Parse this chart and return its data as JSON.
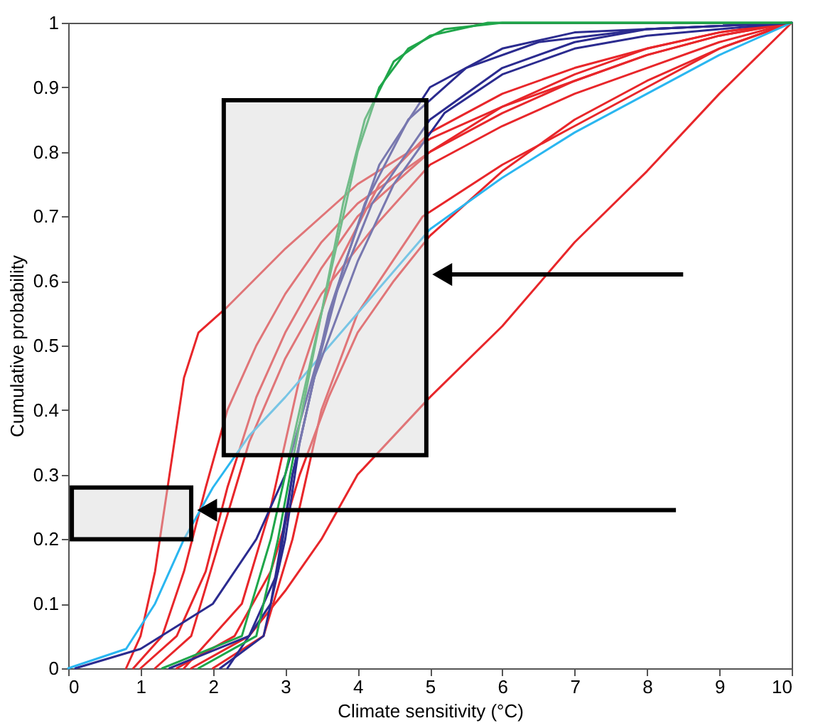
{
  "chart_data": {
    "type": "line",
    "xlabel": "Climate sensitivity (°C)",
    "ylabel": "Cumulative probability",
    "xlim": [
      0,
      10
    ],
    "ylim": [
      0,
      1
    ],
    "xticks": [
      0,
      1,
      2,
      3,
      4,
      5,
      6,
      7,
      8,
      9,
      10
    ],
    "yticks": [
      0,
      0.1,
      0.2,
      0.3,
      0.4,
      0.5,
      0.6,
      0.7,
      0.8,
      0.9,
      1
    ],
    "grid": false,
    "legend": false,
    "marker": "none",
    "line_style": "solid",
    "series": [
      {
        "color": "#e8262a",
        "x": [
          0.8,
          1.0,
          1.2,
          1.4,
          1.6,
          1.8,
          2.2,
          3,
          4,
          5,
          6,
          7,
          8,
          9,
          10
        ],
        "values": [
          0,
          0.05,
          0.15,
          0.3,
          0.45,
          0.52,
          0.56,
          0.65,
          0.75,
          0.82,
          0.87,
          0.91,
          0.95,
          0.98,
          1
        ]
      },
      {
        "color": "#e8262a",
        "x": [
          0.9,
          1.3,
          1.6,
          1.9,
          2.2,
          2.6,
          3,
          3.5,
          4,
          5,
          6,
          7,
          8,
          9,
          10
        ],
        "values": [
          0,
          0.05,
          0.15,
          0.28,
          0.4,
          0.5,
          0.58,
          0.66,
          0.72,
          0.8,
          0.86,
          0.91,
          0.95,
          0.98,
          1
        ]
      },
      {
        "color": "#e8262a",
        "x": [
          1,
          1.5,
          1.9,
          2.2,
          2.6,
          3,
          3.5,
          4,
          5,
          6,
          7,
          8,
          9,
          10
        ],
        "values": [
          0,
          0.05,
          0.15,
          0.28,
          0.42,
          0.52,
          0.62,
          0.7,
          0.8,
          0.87,
          0.92,
          0.96,
          0.985,
          1
        ]
      },
      {
        "color": "#e8262a",
        "x": [
          1.2,
          1.7,
          2.1,
          2.5,
          3,
          3.5,
          4.2,
          5,
          6,
          7,
          8,
          9,
          10
        ],
        "values": [
          0,
          0.05,
          0.2,
          0.35,
          0.48,
          0.58,
          0.68,
          0.78,
          0.84,
          0.89,
          0.93,
          0.97,
          1
        ]
      },
      {
        "color": "#e8262a",
        "x": [
          1.5,
          2.3,
          2.8,
          3.2,
          3.6,
          4,
          4.5,
          5,
          6,
          7,
          8,
          9,
          10
        ],
        "values": [
          0,
          0.05,
          0.15,
          0.3,
          0.42,
          0.52,
          0.6,
          0.67,
          0.77,
          0.85,
          0.91,
          0.96,
          1
        ]
      },
      {
        "color": "#e8262a",
        "x": [
          1.7,
          2.5,
          3,
          3.5,
          4,
          5,
          6,
          7,
          8,
          9,
          10
        ],
        "values": [
          0,
          0.05,
          0.12,
          0.2,
          0.3,
          0.42,
          0.53,
          0.66,
          0.77,
          0.89,
          1
        ]
      },
      {
        "color": "#e8262a",
        "x": [
          2,
          2.7,
          3.1,
          3.5,
          4,
          4.9,
          6,
          7,
          8,
          9,
          10
        ],
        "values": [
          0,
          0.05,
          0.2,
          0.4,
          0.55,
          0.7,
          0.78,
          0.84,
          0.9,
          0.96,
          1
        ]
      },
      {
        "color": "#e8262a",
        "x": [
          1.6,
          2.4,
          2.8,
          3.2,
          3.7,
          4.3,
          5,
          6,
          7,
          8,
          9,
          10
        ],
        "values": [
          0,
          0.1,
          0.25,
          0.45,
          0.62,
          0.75,
          0.83,
          0.89,
          0.93,
          0.96,
          0.985,
          1
        ]
      },
      {
        "color": "#2ab6f0",
        "x": [
          0,
          0.8,
          1.2,
          1.6,
          2,
          2.5,
          3,
          4,
          5,
          6,
          7,
          8,
          9,
          10
        ],
        "values": [
          0,
          0.03,
          0.1,
          0.2,
          0.28,
          0.36,
          0.42,
          0.55,
          0.68,
          0.76,
          0.83,
          0.89,
          0.95,
          1
        ]
      },
      {
        "color": "#2b2b8f",
        "x": [
          0.1,
          1,
          2,
          2.6,
          3,
          3.3,
          3.7,
          4.2,
          5,
          6,
          7,
          8,
          10
        ],
        "values": [
          0,
          0.03,
          0.1,
          0.2,
          0.3,
          0.42,
          0.58,
          0.72,
          0.85,
          0.93,
          0.97,
          0.99,
          1
        ]
      },
      {
        "color": "#2b2b8f",
        "x": [
          1.4,
          2.5,
          2.9,
          3.1,
          3.4,
          3.8,
          4.3,
          5,
          6,
          7,
          10
        ],
        "values": [
          0,
          0.05,
          0.15,
          0.3,
          0.45,
          0.62,
          0.78,
          0.9,
          0.96,
          0.985,
          1
        ]
      },
      {
        "color": "#2b2b8f",
        "x": [
          2.1,
          2.7,
          3,
          3.2,
          3.6,
          4.1,
          4.7,
          5.5,
          6.5,
          8,
          10
        ],
        "values": [
          0,
          0.05,
          0.2,
          0.35,
          0.55,
          0.72,
          0.85,
          0.93,
          0.97,
          0.99,
          1
        ]
      },
      {
        "color": "#2b2b8f",
        "x": [
          2.2,
          2.8,
          3.1,
          3.4,
          4,
          4.5,
          5.2,
          6,
          7,
          8,
          10
        ],
        "values": [
          0,
          0.1,
          0.3,
          0.45,
          0.63,
          0.75,
          0.86,
          0.92,
          0.96,
          0.98,
          1
        ]
      },
      {
        "color": "#1fa64a",
        "x": [
          1.3,
          2.4,
          2.8,
          3.1,
          3.4,
          3.7,
          4,
          4.3,
          4.7,
          5.2,
          6,
          10
        ],
        "values": [
          0,
          0.05,
          0.2,
          0.35,
          0.5,
          0.65,
          0.8,
          0.9,
          0.96,
          0.99,
          1,
          1
        ]
      },
      {
        "color": "#1fa64a",
        "x": [
          1.8,
          2.6,
          2.9,
          3.2,
          3.5,
          3.8,
          4.1,
          4.5,
          5,
          5.8,
          10
        ],
        "values": [
          0,
          0.05,
          0.2,
          0.38,
          0.55,
          0.72,
          0.85,
          0.94,
          0.98,
          1,
          1
        ]
      }
    ]
  }
}
